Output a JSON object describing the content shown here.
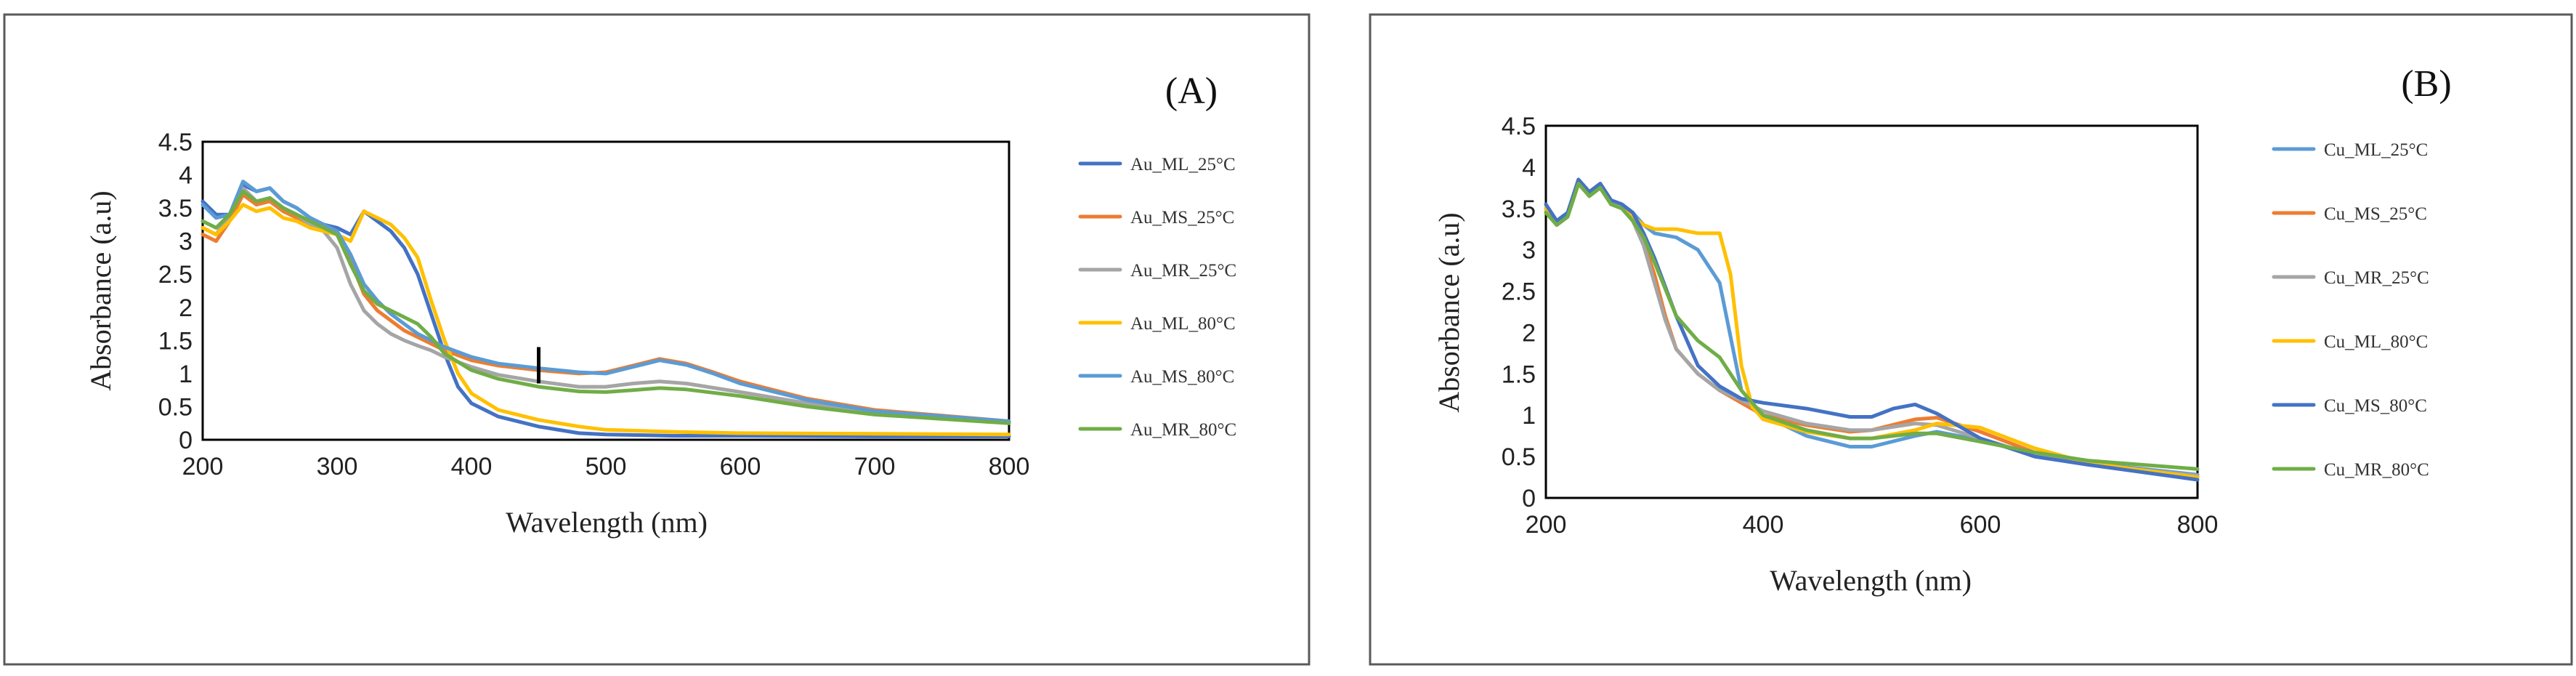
{
  "chart_data": [
    {
      "type": "line",
      "panel_label": "(A)",
      "title": "",
      "xlabel": "Wavelength (nm)",
      "ylabel": "Absorbance (a.u)",
      "xlim": [
        200,
        800
      ],
      "ylim": [
        0,
        4.5
      ],
      "xticks": [
        "200",
        "300",
        "400",
        "500",
        "600",
        "700",
        "800"
      ],
      "yticks": [
        "0",
        "0.5",
        "1",
        "1.5",
        "2",
        "2.5",
        "3",
        "3.5",
        "4",
        "4.5"
      ],
      "legend_position": "right",
      "marker_x": 450,
      "marker_y": [
        0.85,
        1.4
      ],
      "series": [
        {
          "name": "Au_ML_25°C",
          "color": "#4472C4",
          "x": [
            200,
            210,
            220,
            230,
            240,
            250,
            260,
            270,
            280,
            290,
            300,
            310,
            320,
            330,
            340,
            350,
            360,
            370,
            380,
            390,
            400,
            420,
            450,
            480,
            500,
            550,
            600,
            700,
            800
          ],
          "y": [
            3.6,
            3.4,
            3.4,
            3.85,
            3.75,
            3.8,
            3.6,
            3.5,
            3.35,
            3.25,
            3.2,
            3.1,
            3.45,
            3.3,
            3.15,
            2.9,
            2.5,
            1.9,
            1.3,
            0.8,
            0.55,
            0.35,
            0.2,
            0.1,
            0.08,
            0.06,
            0.06,
            0.05,
            0.05
          ]
        },
        {
          "name": "Au_MS_25°C",
          "color": "#ED7D31",
          "x": [
            200,
            210,
            220,
            230,
            240,
            250,
            260,
            270,
            280,
            290,
            300,
            310,
            320,
            330,
            340,
            350,
            360,
            370,
            380,
            400,
            420,
            450,
            480,
            500,
            520,
            540,
            560,
            580,
            600,
            650,
            700,
            800
          ],
          "y": [
            3.1,
            3.0,
            3.3,
            3.7,
            3.55,
            3.6,
            3.45,
            3.35,
            3.25,
            3.2,
            3.1,
            2.7,
            2.2,
            1.95,
            1.8,
            1.65,
            1.55,
            1.45,
            1.35,
            1.2,
            1.12,
            1.05,
            1.0,
            1.02,
            1.12,
            1.22,
            1.15,
            1.02,
            0.88,
            0.62,
            0.45,
            0.28
          ]
        },
        {
          "name": "Au_MR_25°C",
          "color": "#A5A5A5",
          "x": [
            200,
            210,
            220,
            230,
            240,
            250,
            260,
            270,
            280,
            290,
            300,
            310,
            320,
            330,
            340,
            350,
            360,
            370,
            380,
            400,
            420,
            450,
            480,
            500,
            520,
            540,
            560,
            600,
            650,
            700,
            800
          ],
          "y": [
            3.2,
            3.1,
            3.4,
            3.8,
            3.6,
            3.65,
            3.5,
            3.4,
            3.25,
            3.15,
            2.9,
            2.35,
            1.95,
            1.75,
            1.6,
            1.5,
            1.42,
            1.35,
            1.25,
            1.1,
            0.98,
            0.88,
            0.8,
            0.8,
            0.85,
            0.88,
            0.85,
            0.72,
            0.55,
            0.42,
            0.27
          ]
        },
        {
          "name": "Au_ML_80°C",
          "color": "#FFC000",
          "x": [
            200,
            210,
            220,
            230,
            240,
            250,
            260,
            270,
            280,
            290,
            300,
            310,
            320,
            330,
            340,
            350,
            360,
            370,
            380,
            390,
            400,
            420,
            450,
            480,
            500,
            550,
            600,
            700,
            800
          ],
          "y": [
            3.2,
            3.1,
            3.3,
            3.55,
            3.45,
            3.5,
            3.35,
            3.3,
            3.2,
            3.15,
            3.1,
            3.0,
            3.45,
            3.35,
            3.25,
            3.05,
            2.75,
            2.1,
            1.5,
            1.0,
            0.7,
            0.45,
            0.3,
            0.2,
            0.15,
            0.12,
            0.1,
            0.09,
            0.08
          ]
        },
        {
          "name": "Au_MS_80°C",
          "color": "#5B9BD5",
          "x": [
            200,
            210,
            220,
            230,
            240,
            250,
            260,
            270,
            280,
            290,
            300,
            310,
            320,
            330,
            340,
            350,
            360,
            370,
            380,
            400,
            420,
            450,
            480,
            500,
            520,
            540,
            560,
            580,
            600,
            650,
            700,
            800
          ],
          "y": [
            3.55,
            3.35,
            3.4,
            3.9,
            3.75,
            3.8,
            3.6,
            3.5,
            3.35,
            3.25,
            3.15,
            2.8,
            2.35,
            2.1,
            1.9,
            1.75,
            1.6,
            1.5,
            1.4,
            1.25,
            1.15,
            1.08,
            1.02,
            1.0,
            1.1,
            1.2,
            1.13,
            1.0,
            0.85,
            0.6,
            0.43,
            0.28
          ]
        },
        {
          "name": "Au_MR_80°C",
          "color": "#70AD47",
          "x": [
            200,
            210,
            220,
            230,
            240,
            250,
            260,
            270,
            280,
            290,
            300,
            310,
            320,
            330,
            340,
            350,
            360,
            370,
            380,
            400,
            420,
            450,
            480,
            500,
            520,
            540,
            560,
            600,
            650,
            700,
            800
          ],
          "y": [
            3.3,
            3.2,
            3.4,
            3.75,
            3.6,
            3.65,
            3.5,
            3.4,
            3.3,
            3.2,
            3.1,
            2.65,
            2.25,
            2.05,
            1.95,
            1.85,
            1.75,
            1.55,
            1.3,
            1.05,
            0.92,
            0.8,
            0.73,
            0.72,
            0.75,
            0.78,
            0.76,
            0.66,
            0.5,
            0.38,
            0.25
          ]
        }
      ]
    },
    {
      "type": "line",
      "panel_label": "(B)",
      "title": "",
      "xlabel": "Wavelength (nm)",
      "ylabel": "Absorbance (a.u)",
      "xlim": [
        200,
        800
      ],
      "ylim": [
        0,
        4.5
      ],
      "xticks": [
        "200",
        "400",
        "600",
        "800"
      ],
      "yticks": [
        "0",
        "0.5",
        "1",
        "1.5",
        "2",
        "2.5",
        "3",
        "3.5",
        "4",
        "4.5"
      ],
      "legend_position": "right",
      "series": [
        {
          "name": "Cu_ML_25°C",
          "color": "#5B9BD5",
          "x": [
            200,
            210,
            220,
            230,
            240,
            250,
            260,
            270,
            280,
            290,
            300,
            320,
            340,
            360,
            380,
            400,
            440,
            480,
            500,
            540,
            560,
            600,
            650,
            700,
            800
          ],
          "y": [
            3.55,
            3.3,
            3.4,
            3.85,
            3.7,
            3.8,
            3.6,
            3.55,
            3.45,
            3.3,
            3.2,
            3.15,
            3.0,
            2.6,
            1.3,
            1.0,
            0.75,
            0.62,
            0.62,
            0.75,
            0.8,
            0.7,
            0.52,
            0.42,
            0.28
          ]
        },
        {
          "name": "Cu_MS_25°C",
          "color": "#ED7D31",
          "x": [
            200,
            210,
            220,
            230,
            240,
            250,
            260,
            270,
            280,
            290,
            300,
            310,
            320,
            340,
            360,
            380,
            400,
            440,
            480,
            500,
            540,
            560,
            600,
            650,
            700,
            800
          ],
          "y": [
            3.5,
            3.3,
            3.4,
            3.8,
            3.65,
            3.75,
            3.55,
            3.5,
            3.35,
            3.1,
            2.7,
            2.2,
            1.8,
            1.5,
            1.3,
            1.15,
            1.0,
            0.88,
            0.8,
            0.82,
            0.95,
            0.97,
            0.8,
            0.55,
            0.42,
            0.25
          ]
        },
        {
          "name": "Cu_MR_25°C",
          "color": "#A5A5A5",
          "x": [
            200,
            210,
            220,
            230,
            240,
            250,
            260,
            270,
            280,
            290,
            300,
            310,
            320,
            340,
            360,
            380,
            400,
            440,
            480,
            500,
            540,
            560,
            600,
            650,
            700,
            800
          ],
          "y": [
            3.45,
            3.3,
            3.4,
            3.8,
            3.65,
            3.75,
            3.55,
            3.5,
            3.35,
            3.05,
            2.6,
            2.15,
            1.8,
            1.5,
            1.3,
            1.18,
            1.05,
            0.9,
            0.82,
            0.82,
            0.9,
            0.88,
            0.72,
            0.52,
            0.4,
            0.27
          ]
        },
        {
          "name": "Cu_ML_80°C",
          "color": "#FFC000",
          "x": [
            200,
            210,
            220,
            230,
            240,
            250,
            260,
            270,
            280,
            290,
            300,
            320,
            340,
            360,
            370,
            380,
            390,
            400,
            440,
            480,
            500,
            540,
            560,
            600,
            650,
            700,
            800
          ],
          "y": [
            3.5,
            3.35,
            3.4,
            3.85,
            3.7,
            3.8,
            3.6,
            3.55,
            3.4,
            3.3,
            3.25,
            3.25,
            3.2,
            3.2,
            2.7,
            1.6,
            1.1,
            0.95,
            0.8,
            0.72,
            0.72,
            0.82,
            0.9,
            0.85,
            0.6,
            0.42,
            0.25
          ]
        },
        {
          "name": "Cu_MS_80°C",
          "color": "#4472C4",
          "x": [
            200,
            210,
            220,
            230,
            240,
            250,
            260,
            270,
            280,
            290,
            300,
            320,
            340,
            360,
            380,
            400,
            440,
            480,
            500,
            520,
            540,
            560,
            600,
            650,
            700,
            800
          ],
          "y": [
            3.55,
            3.35,
            3.45,
            3.85,
            3.7,
            3.8,
            3.6,
            3.55,
            3.45,
            3.2,
            2.9,
            2.2,
            1.6,
            1.35,
            1.2,
            1.15,
            1.08,
            0.98,
            0.98,
            1.08,
            1.13,
            1.02,
            0.72,
            0.5,
            0.4,
            0.22
          ]
        },
        {
          "name": "Cu_MR_80°C",
          "color": "#70AD47",
          "x": [
            200,
            210,
            220,
            230,
            240,
            250,
            260,
            270,
            280,
            290,
            300,
            320,
            340,
            360,
            380,
            400,
            440,
            480,
            500,
            540,
            560,
            600,
            650,
            700,
            800
          ],
          "y": [
            3.45,
            3.3,
            3.4,
            3.8,
            3.65,
            3.75,
            3.55,
            3.5,
            3.35,
            3.15,
            2.85,
            2.2,
            1.9,
            1.7,
            1.3,
            1.0,
            0.82,
            0.72,
            0.72,
            0.78,
            0.78,
            0.68,
            0.55,
            0.45,
            0.35
          ]
        }
      ]
    }
  ]
}
